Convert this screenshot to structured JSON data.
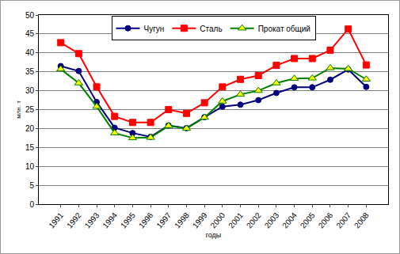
{
  "chart_data": {
    "type": "line",
    "x_label": "годы",
    "y_label": "млн. т",
    "categories": [
      "1991",
      "1992",
      "1993",
      "1994",
      "1995",
      "1996",
      "1997",
      "1998",
      "1999",
      "2000",
      "2001",
      "2002",
      "2003",
      "2004",
      "2005",
      "2006",
      "2007",
      "2008"
    ],
    "series": [
      {
        "name": "Чугун",
        "color": "#000080",
        "marker": "circle",
        "values": [
          36.5,
          35.2,
          27,
          20.2,
          18.8,
          17.8,
          20.8,
          20.1,
          23,
          25.8,
          26.3,
          27.5,
          29.4,
          30.9,
          30.9,
          32.9,
          35.6,
          31
        ]
      },
      {
        "name": "Сталь",
        "color": "#ff0000",
        "marker": "square",
        "values": [
          42.7,
          39.8,
          31,
          23.2,
          21.6,
          21.6,
          25,
          24,
          26.8,
          31,
          33,
          34,
          36.7,
          38.5,
          38.5,
          40.7,
          46.3,
          36.8
        ]
      },
      {
        "name": "Прокат общий",
        "color": "#008000",
        "marker": "triangle-up",
        "values": [
          35.7,
          32,
          25.8,
          18.8,
          17.5,
          17.6,
          20.7,
          20,
          22.9,
          27.2,
          29,
          30,
          32,
          33.2,
          33.3,
          36,
          35.8,
          33
        ]
      }
    ],
    "ylim": [
      0,
      50
    ],
    "yticks": [
      0,
      5,
      10,
      15,
      20,
      25,
      30,
      35,
      40,
      45,
      50
    ],
    "grid": true,
    "legend": "top"
  }
}
